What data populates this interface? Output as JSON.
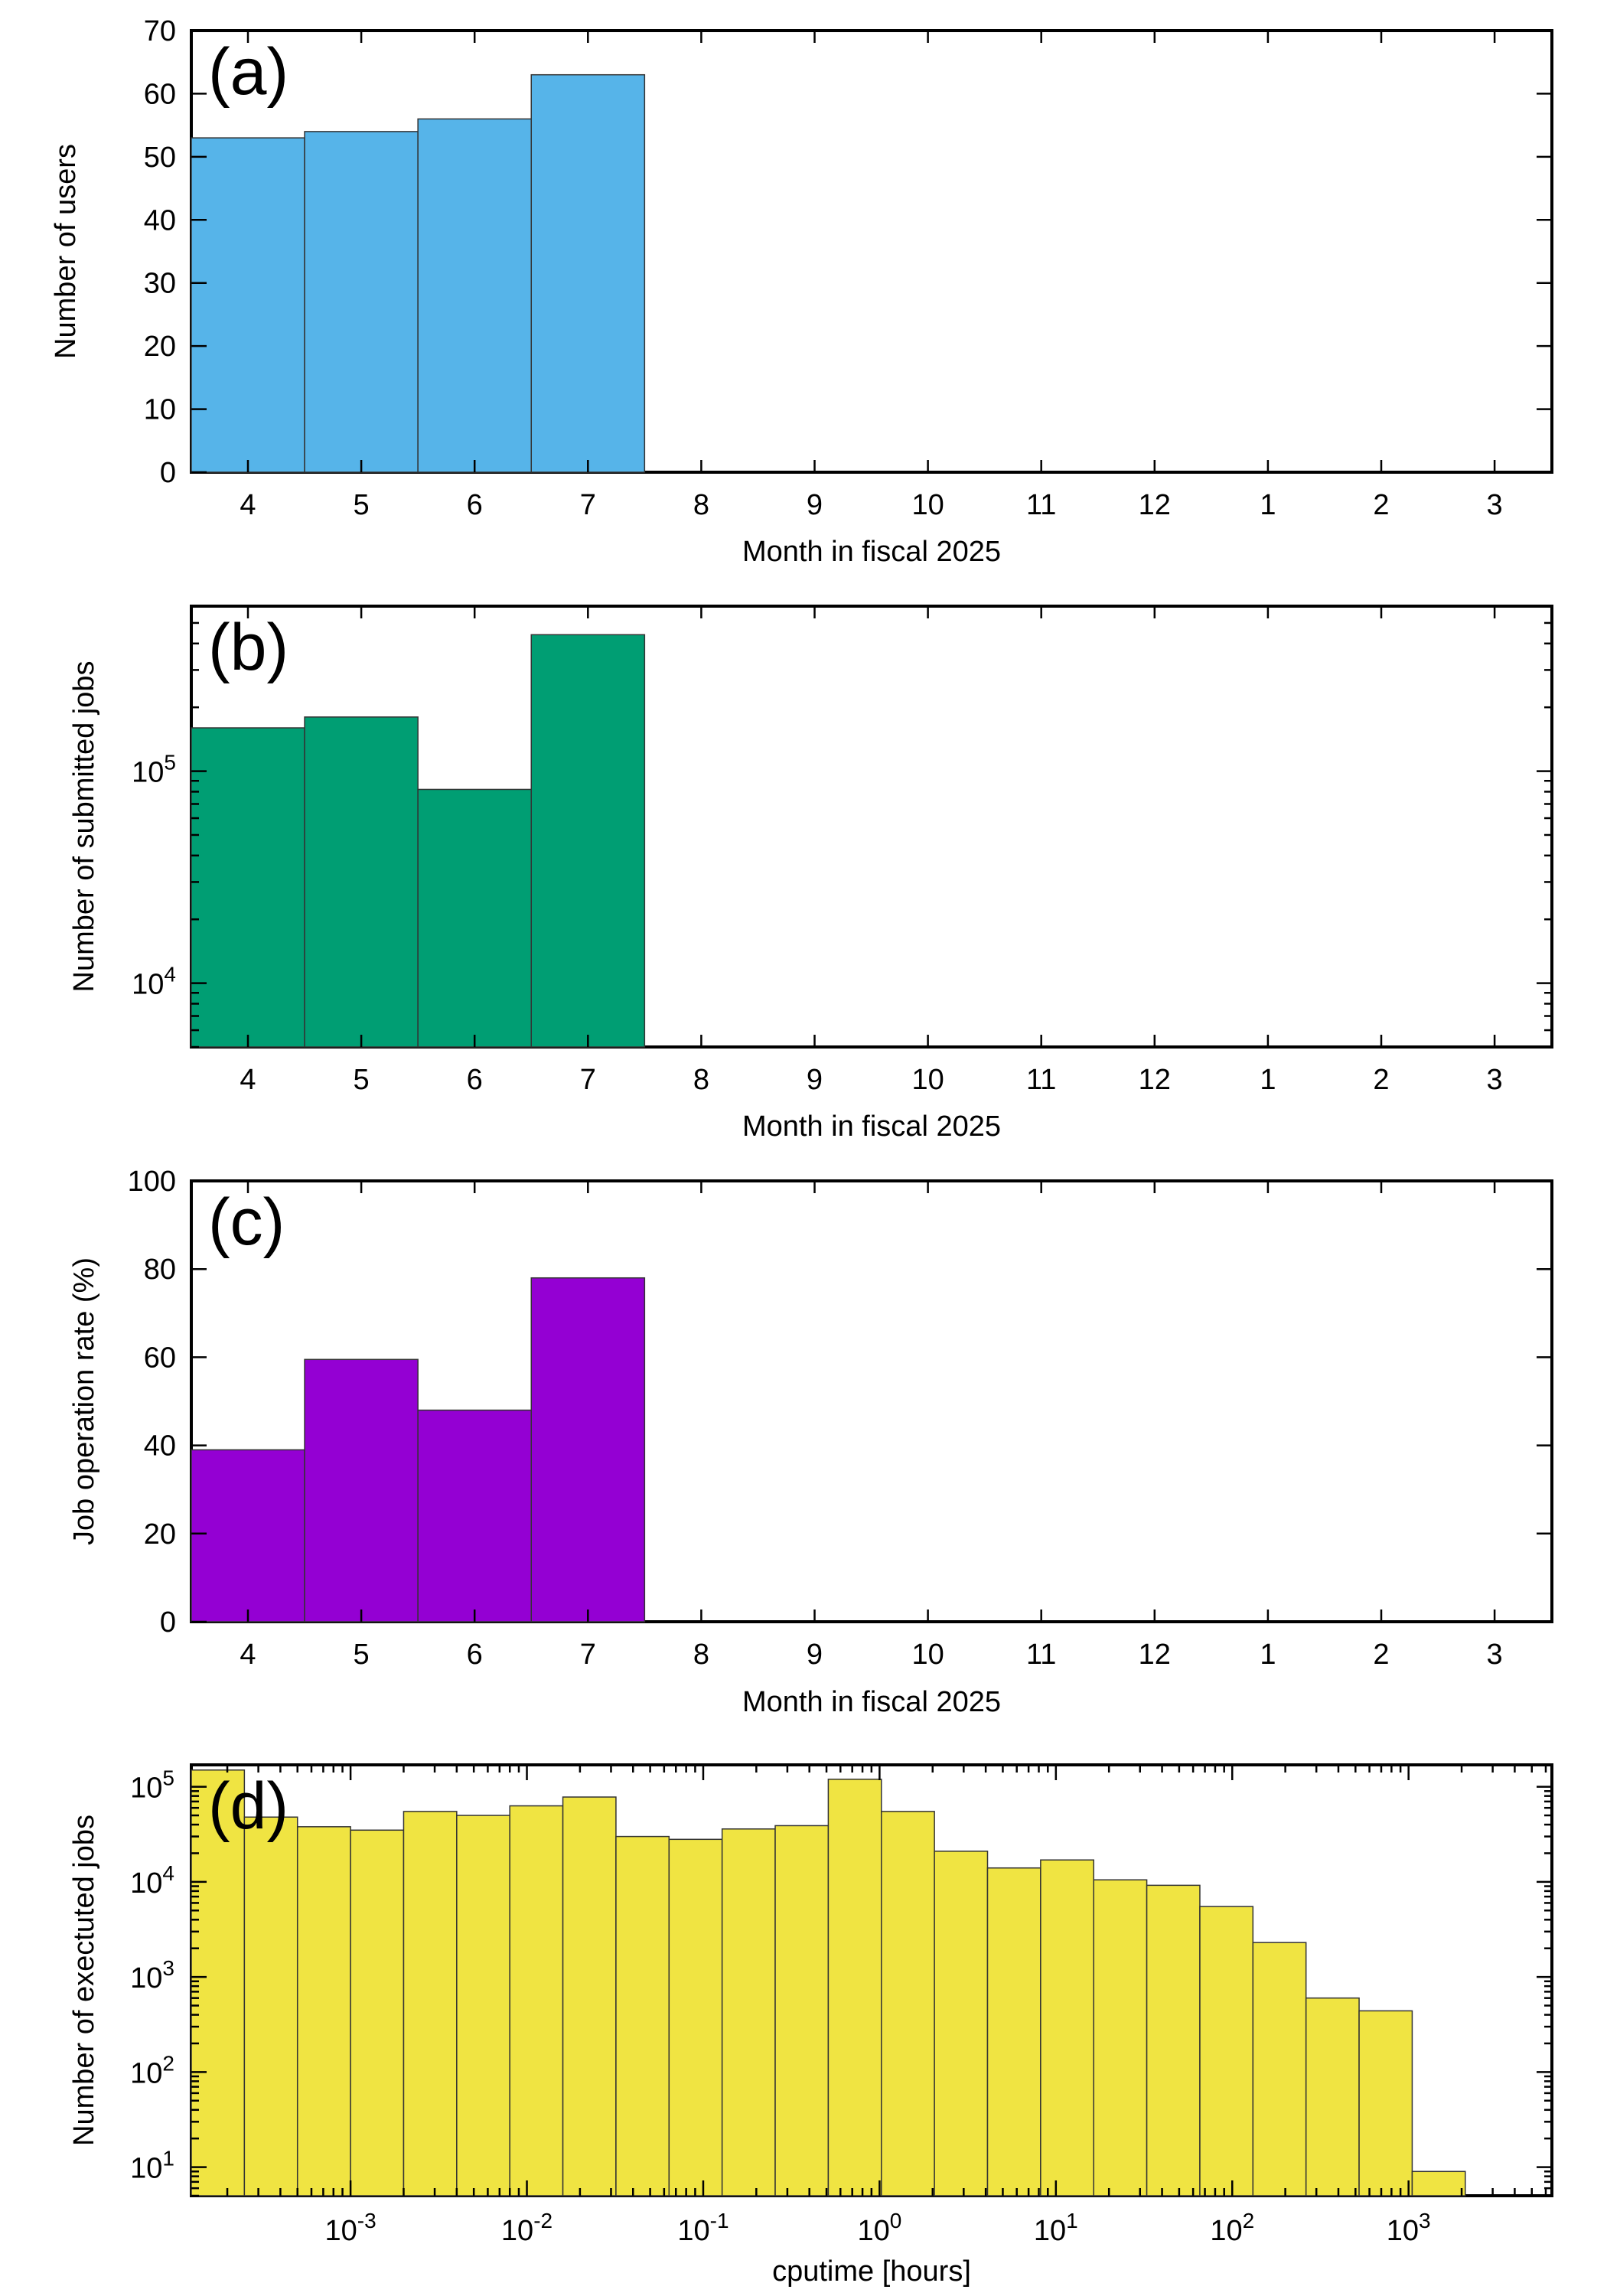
{
  "chart_data": [
    {
      "id": "a",
      "type": "bar",
      "panel_label": "(a)",
      "xlabel": "Month in fiscal 2025",
      "ylabel": "Number of users",
      "categories": [
        "4",
        "5",
        "6",
        "7",
        "8",
        "9",
        "10",
        "11",
        "12",
        "1",
        "2",
        "3"
      ],
      "values": [
        53,
        54,
        56,
        63,
        null,
        null,
        null,
        null,
        null,
        null,
        null,
        null
      ],
      "ylim": [
        0,
        70
      ],
      "yscale": "linear",
      "yticks": [
        "0",
        "10",
        "20",
        "30",
        "40",
        "50",
        "60",
        "70"
      ],
      "color": "#56b4e9",
      "grid": false
    },
    {
      "id": "b",
      "type": "bar",
      "panel_label": "(b)",
      "xlabel": "Month in fiscal 2025",
      "ylabel": "Number of submitted jobs",
      "categories": [
        "4",
        "5",
        "6",
        "7",
        "8",
        "9",
        "10",
        "11",
        "12",
        "1",
        "2",
        "3"
      ],
      "values": [
        160000,
        180000,
        82000,
        440000,
        null,
        null,
        null,
        null,
        null,
        null,
        null,
        null
      ],
      "ylim": [
        5000,
        600000
      ],
      "yscale": "log",
      "ytick_labels": [
        {
          "base": "10",
          "exp": "4"
        },
        {
          "base": "10",
          "exp": "5"
        }
      ],
      "color": "#009e73",
      "grid": false
    },
    {
      "id": "c",
      "type": "bar",
      "panel_label": "(c)",
      "xlabel": "Month in fiscal 2025",
      "ylabel": "Job operation rate (%)",
      "categories": [
        "4",
        "5",
        "6",
        "7",
        "8",
        "9",
        "10",
        "11",
        "12",
        "1",
        "2",
        "3"
      ],
      "values": [
        39,
        59.5,
        48,
        78,
        null,
        null,
        null,
        null,
        null,
        null,
        null,
        null
      ],
      "ylim": [
        0,
        100
      ],
      "yscale": "linear",
      "yticks": [
        "0",
        "20",
        "40",
        "60",
        "80",
        "100"
      ],
      "color": "#9400d3",
      "grid": false
    },
    {
      "id": "d",
      "type": "bar",
      "panel_label": "(d)",
      "xlabel": "cputime [hours]",
      "ylabel": "Number of exectuted jobs",
      "xscale": "log",
      "yscale": "log",
      "xlim": [
        0.000125,
        6500
      ],
      "ylim": [
        5,
        170000
      ],
      "bin_edges": [
        0.000125,
        0.00025,
        0.0005,
        0.001,
        0.002,
        0.004,
        0.008,
        0.016,
        0.032,
        0.064,
        0.128,
        0.256,
        0.512,
        1.024,
        2.048,
        4.096,
        8.192,
        16.384,
        32.768,
        65.536,
        131.072,
        262.144,
        524.288,
        1048.576,
        2097.152,
        4194.304
      ],
      "values": [
        150000,
        48000,
        38000,
        35000,
        55000,
        50000,
        63000,
        78000,
        30000,
        28000,
        36000,
        39000,
        120000,
        55000,
        21000,
        14000,
        17000,
        10500,
        9200,
        5500,
        2300,
        600,
        440,
        9,
        null
      ],
      "xtick_labels": [
        {
          "base": "10",
          "exp": "-3"
        },
        {
          "base": "10",
          "exp": "-2"
        },
        {
          "base": "10",
          "exp": "-1"
        },
        {
          "base": "10",
          "exp": "0"
        },
        {
          "base": "10",
          "exp": "1"
        },
        {
          "base": "10",
          "exp": "2"
        },
        {
          "base": "10",
          "exp": "3"
        }
      ],
      "ytick_labels": [
        {
          "base": "10",
          "exp": "1"
        },
        {
          "base": "10",
          "exp": "2"
        },
        {
          "base": "10",
          "exp": "3"
        },
        {
          "base": "10",
          "exp": "4"
        },
        {
          "base": "10",
          "exp": "5"
        }
      ],
      "color": "#f0e442",
      "grid": false
    }
  ]
}
